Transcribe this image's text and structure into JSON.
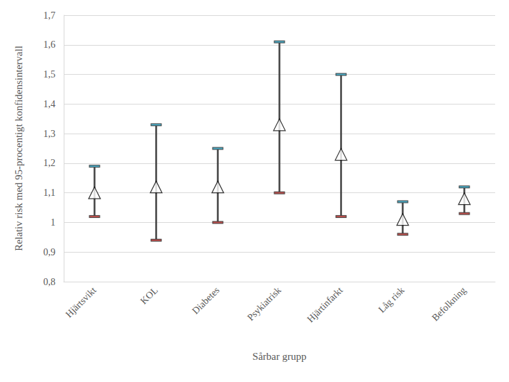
{
  "chart_data": {
    "type": "scatter",
    "x_label": "Sårbar grupp",
    "y_label": "Relativ risk med 95-procentigt konfidensintervall",
    "categories": [
      "Hjärtsvikt",
      "KOL",
      "Diabetes",
      "Psykiatrisk",
      "Hjärtinfarkt",
      "Låg risk",
      "Befolkning"
    ],
    "values": [
      1.1,
      1.12,
      1.12,
      1.33,
      1.23,
      1.01,
      1.08
    ],
    "lower": [
      1.02,
      0.94,
      1.0,
      1.1,
      1.02,
      0.96,
      1.03
    ],
    "upper": [
      1.19,
      1.33,
      1.25,
      1.61,
      1.5,
      1.07,
      1.12
    ],
    "color": "#404040",
    "marker": "triangle",
    "ylim": [
      0.8,
      1.7
    ],
    "yticks": [
      {
        "value": 0.8,
        "label": "0,8"
      },
      {
        "value": 0.9,
        "label": "0,9"
      },
      1,
      {
        "value": 1.1,
        "label": "1,1"
      },
      {
        "value": 1.2,
        "label": "1,2"
      },
      {
        "value": 1.3,
        "label": "1,3"
      },
      {
        "value": 1.4,
        "label": "1,4"
      },
      {
        "value": 1.5,
        "label": "1,5"
      },
      {
        "value": 1.6,
        "label": "1,6"
      },
      {
        "value": 1.7,
        "label": "1,7"
      }
    ],
    "grid": true
  }
}
